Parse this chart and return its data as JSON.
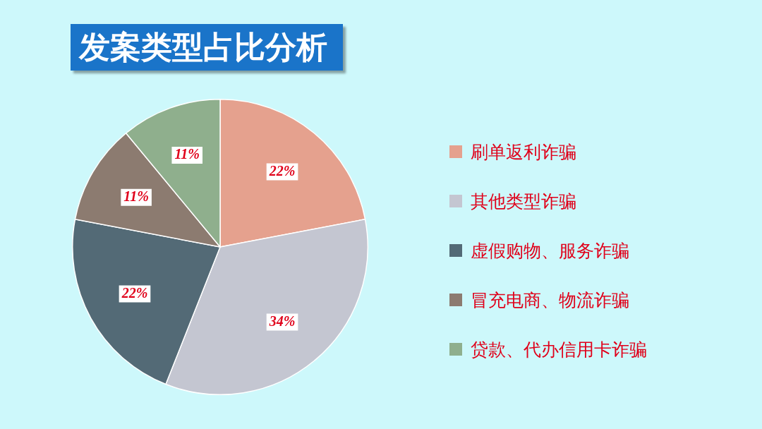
{
  "chart_data": {
    "type": "pie",
    "title": "发案类型占比分析",
    "categories": [
      "刷单返利诈骗",
      "其他类型诈骗",
      "虚假购物、服务诈骗",
      "冒充电商、物流诈骗",
      "贷款、代办信用卡诈骗"
    ],
    "values": [
      22,
      34,
      22,
      11,
      11
    ],
    "value_labels": [
      "22%",
      "34%",
      "22%",
      "11%",
      "11%"
    ],
    "colors": [
      "#e5a18e",
      "#c4c6d1",
      "#536a76",
      "#8c7b70",
      "#8faf8d"
    ],
    "legend": "right"
  }
}
